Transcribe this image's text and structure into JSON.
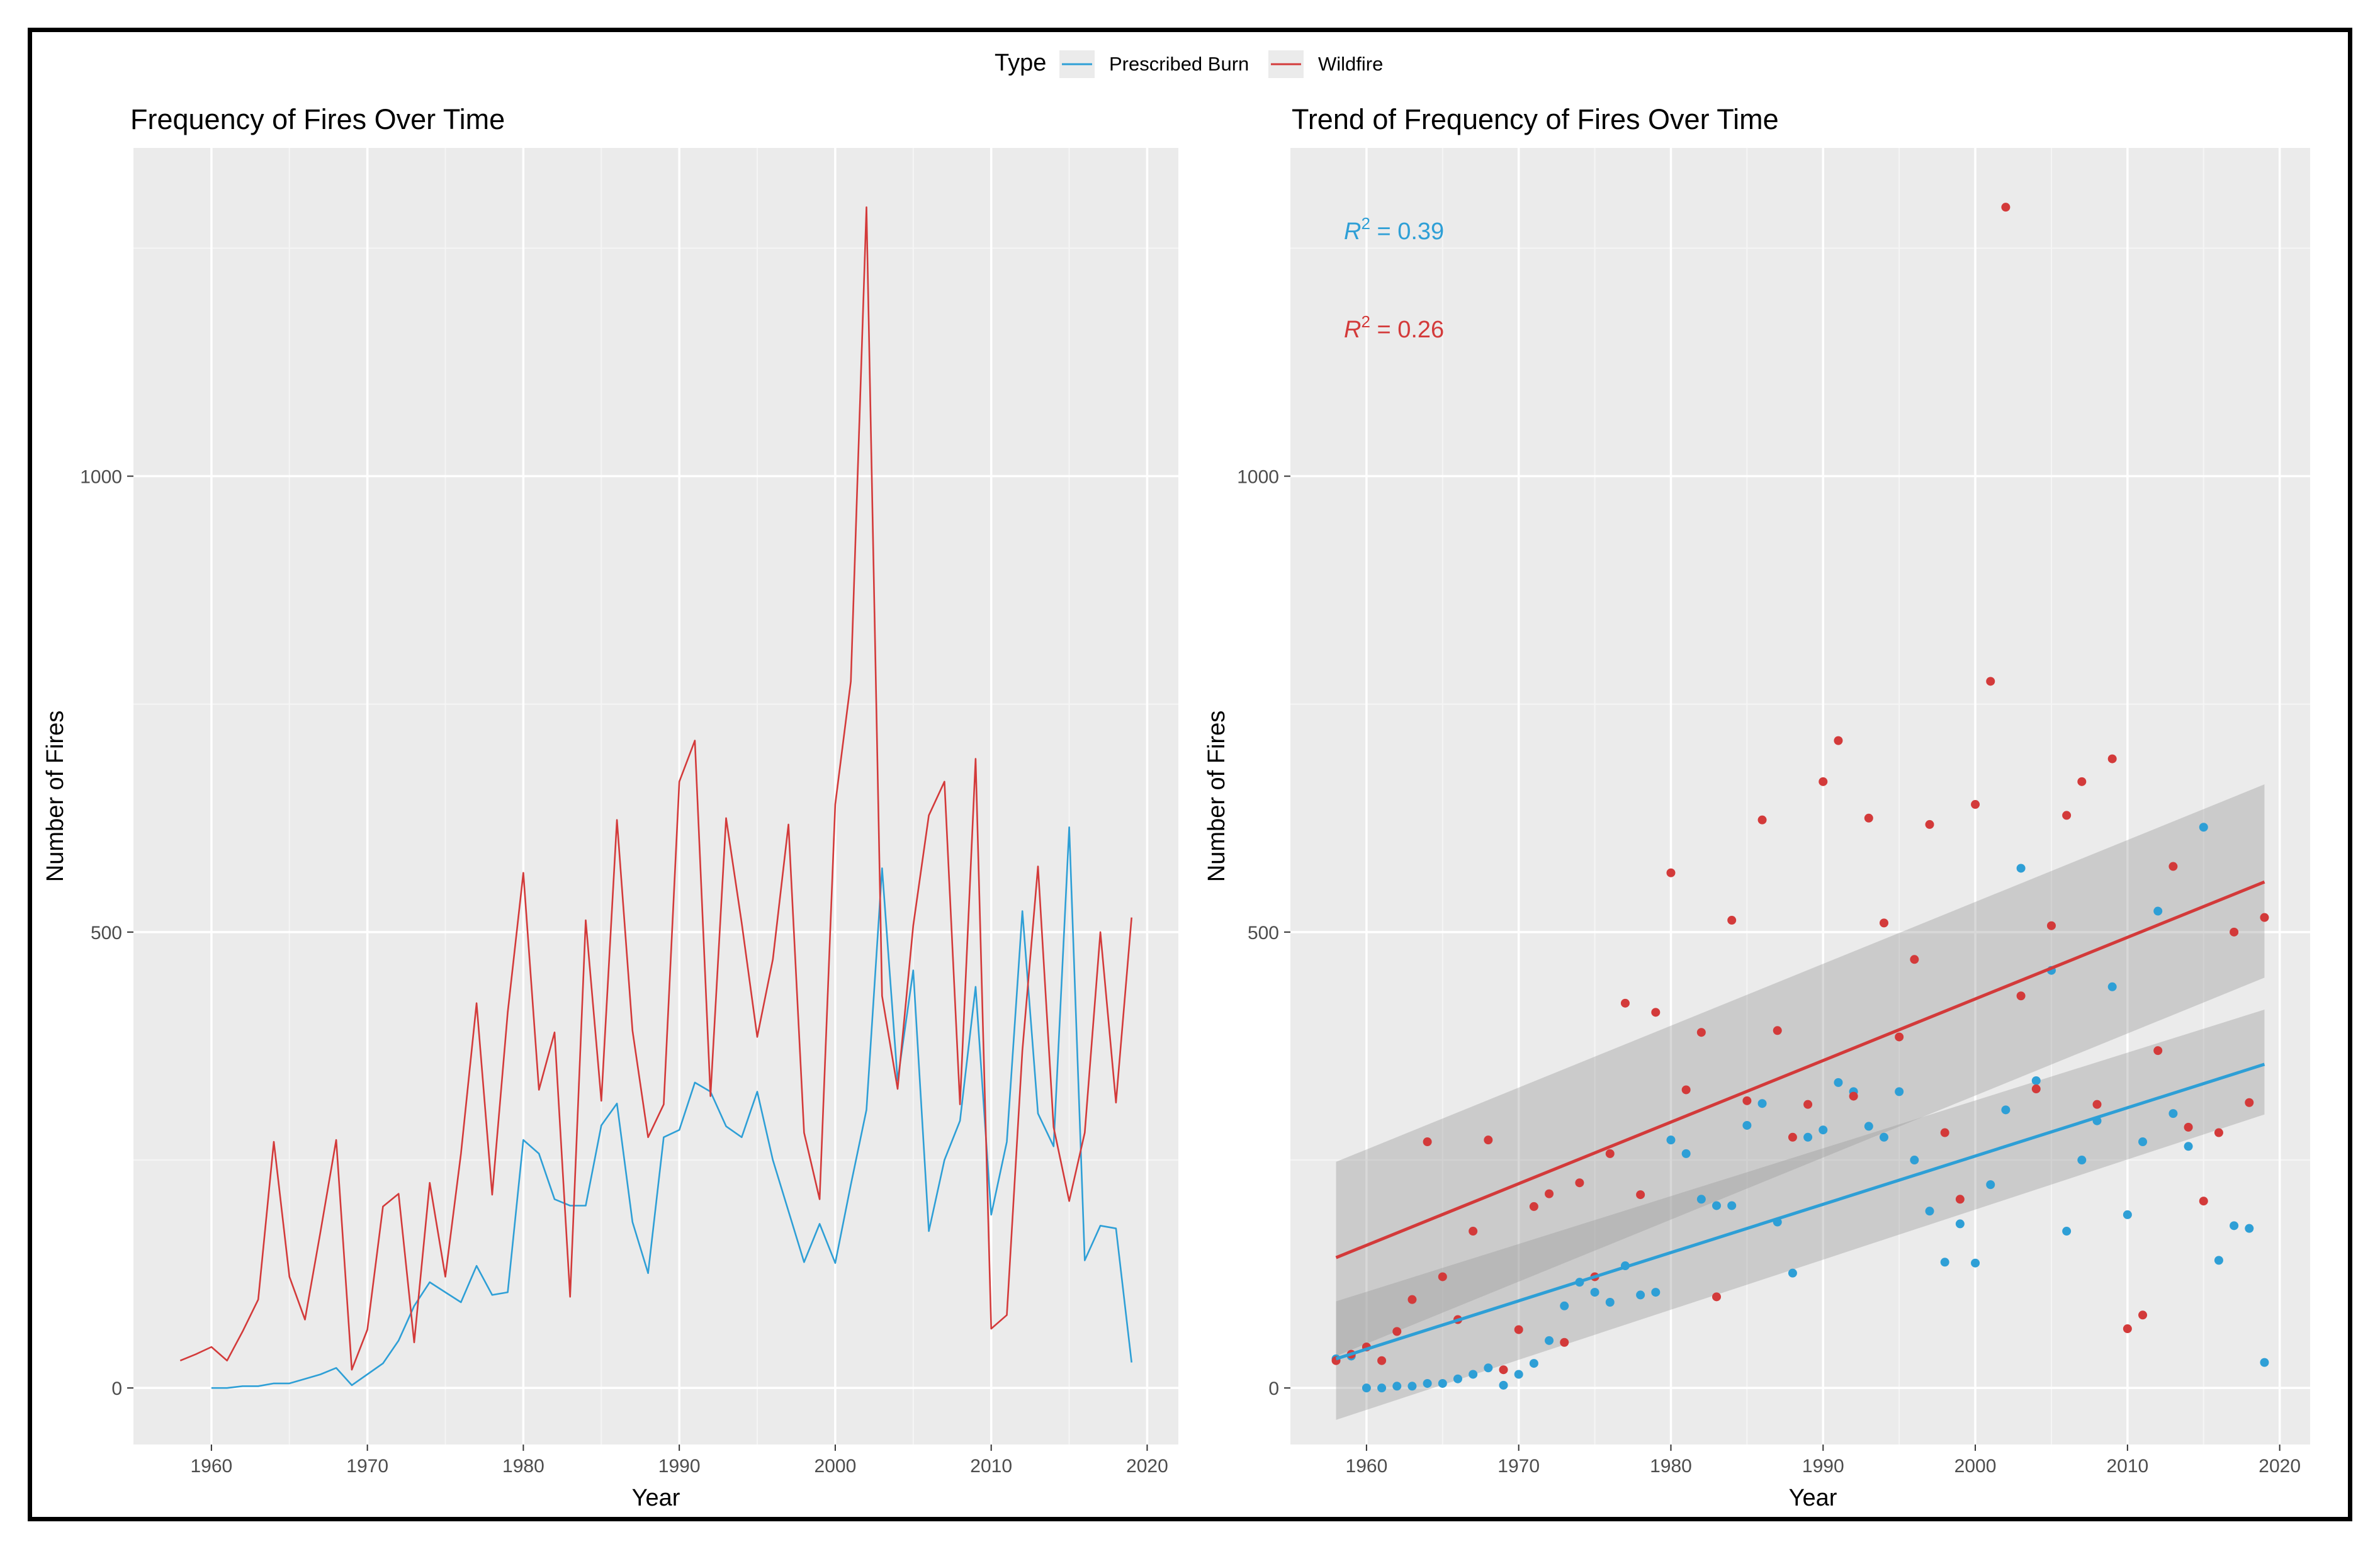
{
  "legend": {
    "title": "Type",
    "items": [
      {
        "label": "Prescribed Burn",
        "color": "#2e9fd6"
      },
      {
        "label": "Wildfire",
        "color": "#d33a3a"
      }
    ]
  },
  "chart_data": [
    {
      "type": "line",
      "title": "Frequency of Fires Over Time",
      "xlabel": "Year",
      "ylabel": "Number of Fires",
      "xlim": [
        1955,
        2022
      ],
      "ylim": [
        -62,
        1360
      ],
      "xticks": [
        1960,
        1970,
        1980,
        1990,
        2000,
        2010,
        2020
      ],
      "yticks": [
        0,
        500,
        1000
      ],
      "series": [
        {
          "name": "Prescribed Burn",
          "color": "#2e9fd6",
          "x": [
            1960,
            1961,
            1962,
            1963,
            1964,
            1965,
            1966,
            1967,
            1968,
            1969,
            1970,
            1971,
            1972,
            1973,
            1974,
            1975,
            1976,
            1977,
            1978,
            1979,
            1980,
            1981,
            1982,
            1983,
            1984,
            1985,
            1986,
            1987,
            1988,
            1989,
            1990,
            1991,
            1992,
            1993,
            1994,
            1995,
            1996,
            1997,
            1998,
            1999,
            2000,
            2001,
            2002,
            2003,
            2004,
            2005,
            2006,
            2007,
            2008,
            2009,
            2010,
            2011,
            2012,
            2013,
            2014,
            2015,
            2016,
            2017,
            2018,
            2019
          ],
          "y": [
            0,
            0,
            2,
            2,
            5,
            5,
            10,
            15,
            22,
            3,
            15,
            27,
            52,
            90,
            116,
            105,
            94,
            134,
            102,
            105,
            272,
            257,
            207,
            200,
            200,
            288,
            312,
            182,
            126,
            275,
            283,
            335,
            325,
            287,
            275,
            325,
            250,
            194,
            138,
            180,
            137,
            223,
            305,
            570,
            337,
            458,
            172,
            250,
            293,
            440,
            190,
            270,
            523,
            301,
            265,
            615,
            140,
            178,
            175,
            28
          ]
        },
        {
          "name": "Wildfire",
          "color": "#d33a3a",
          "x": [
            1958,
            1959,
            1960,
            1961,
            1962,
            1963,
            1964,
            1965,
            1966,
            1967,
            1968,
            1969,
            1970,
            1971,
            1972,
            1973,
            1974,
            1975,
            1976,
            1977,
            1978,
            1979,
            1980,
            1981,
            1982,
            1983,
            1984,
            1985,
            1986,
            1987,
            1988,
            1989,
            1990,
            1991,
            1992,
            1993,
            1994,
            1995,
            1996,
            1997,
            1998,
            1999,
            2000,
            2001,
            2002,
            2003,
            2004,
            2005,
            2006,
            2007,
            2008,
            2009,
            2010,
            2011,
            2012,
            2013,
            2014,
            2015,
            2016,
            2017,
            2018,
            2019
          ],
          "y": [
            30,
            37,
            45,
            30,
            62,
            97,
            270,
            122,
            75,
            172,
            272,
            20,
            64,
            199,
            213,
            50,
            225,
            122,
            257,
            422,
            212,
            412,
            565,
            327,
            390,
            100,
            513,
            315,
            623,
            392,
            275,
            311,
            665,
            710,
            320,
            625,
            510,
            385,
            470,
            618,
            280,
            207,
            640,
            775,
            1295,
            430,
            328,
            507,
            628,
            665,
            311,
            690,
            65,
            80,
            370,
            572,
            286,
            205,
            280,
            500,
            313,
            516
          ]
        }
      ]
    },
    {
      "type": "scatter",
      "title": "Trend of Frequency of Fires Over Time",
      "xlabel": "Year",
      "ylabel": "Number of Fires",
      "xlim": [
        1955,
        2022
      ],
      "ylim": [
        -62,
        1360
      ],
      "xticks": [
        1960,
        1970,
        1980,
        1990,
        2000,
        2010,
        2020
      ],
      "yticks": [
        0,
        500,
        1000
      ],
      "annotations": [
        {
          "label": "R",
          "superscript": "2",
          "text": "= 0.39",
          "series": "Prescribed Burn",
          "color": "#2e9fd6"
        },
        {
          "label": "R",
          "superscript": "2",
          "text": "= 0.26",
          "series": "Wildfire",
          "color": "#d33a3a"
        }
      ],
      "trend": [
        {
          "series": "Prescribed Burn",
          "x": [
            1958,
            2019
          ],
          "y": [
            32,
            355
          ],
          "ci_low": [
            -35,
            300
          ],
          "ci_high": [
            95,
            415
          ]
        },
        {
          "series": "Wildfire",
          "x": [
            1958,
            2019
          ],
          "y": [
            143,
            555
          ],
          "ci_low": [
            35,
            450
          ],
          "ci_high": [
            248,
            662
          ]
        }
      ],
      "series": [
        {
          "name": "Prescribed Burn",
          "color": "#2e9fd6",
          "x": [
            1958,
            1959,
            1960,
            1961,
            1962,
            1963,
            1964,
            1965,
            1966,
            1967,
            1968,
            1969,
            1970,
            1971,
            1972,
            1973,
            1974,
            1975,
            1976,
            1977,
            1978,
            1979,
            1980,
            1981,
            1982,
            1983,
            1984,
            1985,
            1986,
            1987,
            1988,
            1989,
            1990,
            1991,
            1992,
            1993,
            1994,
            1995,
            1996,
            1997,
            1998,
            1999,
            2000,
            2001,
            2002,
            2003,
            2004,
            2005,
            2006,
            2007,
            2008,
            2009,
            2010,
            2011,
            2012,
            2013,
            2014,
            2015,
            2016,
            2017,
            2018,
            2019
          ],
          "y": [
            32,
            35,
            0,
            0,
            2,
            2,
            5,
            5,
            10,
            15,
            22,
            3,
            15,
            27,
            52,
            90,
            116,
            105,
            94,
            134,
            102,
            105,
            272,
            257,
            207,
            200,
            200,
            288,
            312,
            182,
            126,
            275,
            283,
            335,
            325,
            287,
            275,
            325,
            250,
            194,
            138,
            180,
            137,
            223,
            305,
            570,
            337,
            458,
            172,
            250,
            293,
            440,
            190,
            270,
            523,
            301,
            265,
            615,
            140,
            178,
            175,
            28
          ]
        },
        {
          "name": "Wildfire",
          "color": "#d33a3a",
          "x": [
            1958,
            1959,
            1960,
            1961,
            1962,
            1963,
            1964,
            1965,
            1966,
            1967,
            1968,
            1969,
            1970,
            1971,
            1972,
            1973,
            1974,
            1975,
            1976,
            1977,
            1978,
            1979,
            1980,
            1981,
            1982,
            1983,
            1984,
            1985,
            1986,
            1987,
            1988,
            1989,
            1990,
            1991,
            1992,
            1993,
            1994,
            1995,
            1996,
            1997,
            1998,
            1999,
            2000,
            2001,
            2002,
            2003,
            2004,
            2005,
            2006,
            2007,
            2008,
            2009,
            2010,
            2011,
            2012,
            2013,
            2014,
            2015,
            2016,
            2017,
            2018,
            2019
          ],
          "y": [
            30,
            37,
            45,
            30,
            62,
            97,
            270,
            122,
            75,
            172,
            272,
            20,
            64,
            199,
            213,
            50,
            225,
            122,
            257,
            422,
            212,
            412,
            565,
            327,
            390,
            100,
            513,
            315,
            623,
            392,
            275,
            311,
            665,
            710,
            320,
            625,
            510,
            385,
            470,
            618,
            280,
            207,
            640,
            775,
            1295,
            430,
            328,
            507,
            628,
            665,
            311,
            690,
            65,
            80,
            370,
            572,
            286,
            205,
            280,
            500,
            313,
            516
          ]
        }
      ]
    }
  ]
}
